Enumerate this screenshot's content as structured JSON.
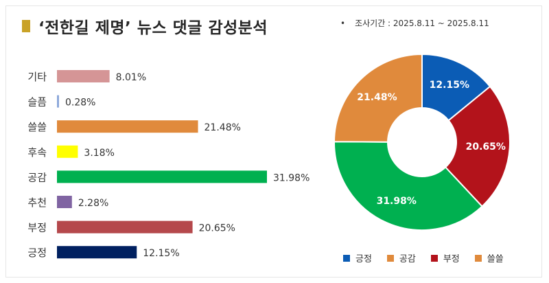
{
  "header": {
    "title": "‘전한길 제명’ 뉴스 댓글 감성분석",
    "period": "조사기간 : 2025.8.11 ~ 2025.8.11"
  },
  "chart_data": [
    {
      "type": "bar",
      "orientation": "horizontal",
      "unit": "%",
      "categories": [
        "기타",
        "슬픔",
        "쓸쓸",
        "후속",
        "공감",
        "추천",
        "부정",
        "긍정"
      ],
      "values": [
        8.01,
        0.28,
        21.48,
        3.18,
        31.98,
        2.28,
        20.65,
        12.15
      ],
      "labels": [
        "8.01%",
        "0.28%",
        "21.48%",
        "3.18%",
        "31.98%",
        "2.28%",
        "20.65%",
        "12.15%"
      ],
      "colors": [
        "#d59596",
        "#8ea9db",
        "#e08a3c",
        "#ffff00",
        "#00b050",
        "#8064a2",
        "#b5484c",
        "#002060"
      ]
    },
    {
      "type": "pie",
      "style": "donut",
      "categories": [
        "긍정",
        "부정",
        "공감",
        "쓸쓸"
      ],
      "values": [
        12.15,
        20.65,
        31.98,
        21.48
      ],
      "labels": [
        "12.15%",
        "20.65%",
        "31.98%",
        "21.48%"
      ],
      "colors": [
        "#0b5cb5",
        "#b3131b",
        "#00b050",
        "#e08a3c"
      ],
      "legend": {
        "placement": "bottom",
        "items": [
          "긍정",
          "공감",
          "부정",
          "쓸쓸"
        ],
        "colors": [
          "#0b5cb5",
          "#e08a3c",
          "#b3131b",
          "#e08a3c"
        ]
      }
    }
  ]
}
